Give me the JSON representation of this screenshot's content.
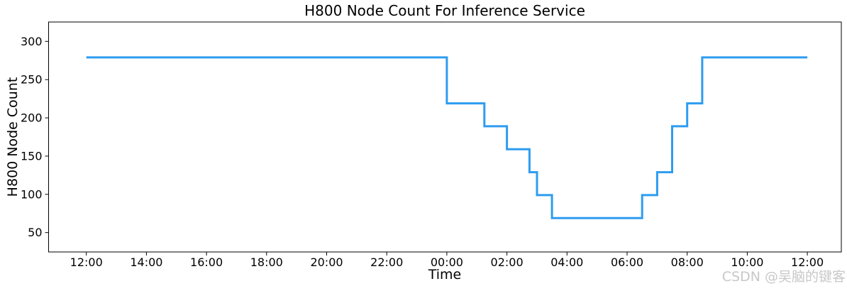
{
  "watermark": "CSDN @吴脑的键客",
  "chart_data": {
    "type": "line",
    "line_style": "step-post",
    "title": "H800 Node Count For Inference Service",
    "xlabel": "Time",
    "ylabel": "H800 Node Count",
    "line_color": "#2E9CF0",
    "axis_color": "#000000",
    "background": "#FFFFFF",
    "grid": false,
    "legend": false,
    "x_tick_labels": [
      "12:00",
      "14:00",
      "16:00",
      "18:00",
      "20:00",
      "22:00",
      "00:00",
      "02:00",
      "04:00",
      "06:00",
      "08:00",
      "10:00",
      "12:00"
    ],
    "x_tick_interval_hours": 2,
    "y_ticks": [
      50,
      100,
      150,
      200,
      250,
      300
    ],
    "ylim": [
      25,
      326
    ],
    "x_range_hours": 24,
    "steps": [
      {
        "time": "12:00",
        "t": 0,
        "value": 279
      },
      {
        "time": "00:00",
        "t": 12,
        "value": 219
      },
      {
        "time": "01:15",
        "t": 13.25,
        "value": 189
      },
      {
        "time": "02:00",
        "t": 14,
        "value": 159
      },
      {
        "time": "02:45",
        "t": 14.75,
        "value": 129
      },
      {
        "time": "03:00",
        "t": 15,
        "value": 99
      },
      {
        "time": "03:30",
        "t": 15.5,
        "value": 69
      },
      {
        "time": "06:30",
        "t": 18.5,
        "value": 99
      },
      {
        "time": "07:00",
        "t": 19,
        "value": 129
      },
      {
        "time": "07:30",
        "t": 19.5,
        "value": 189
      },
      {
        "time": "08:00",
        "t": 20,
        "value": 219
      },
      {
        "time": "08:30",
        "t": 20.5,
        "value": 279
      }
    ],
    "series_end_hour": 24
  }
}
